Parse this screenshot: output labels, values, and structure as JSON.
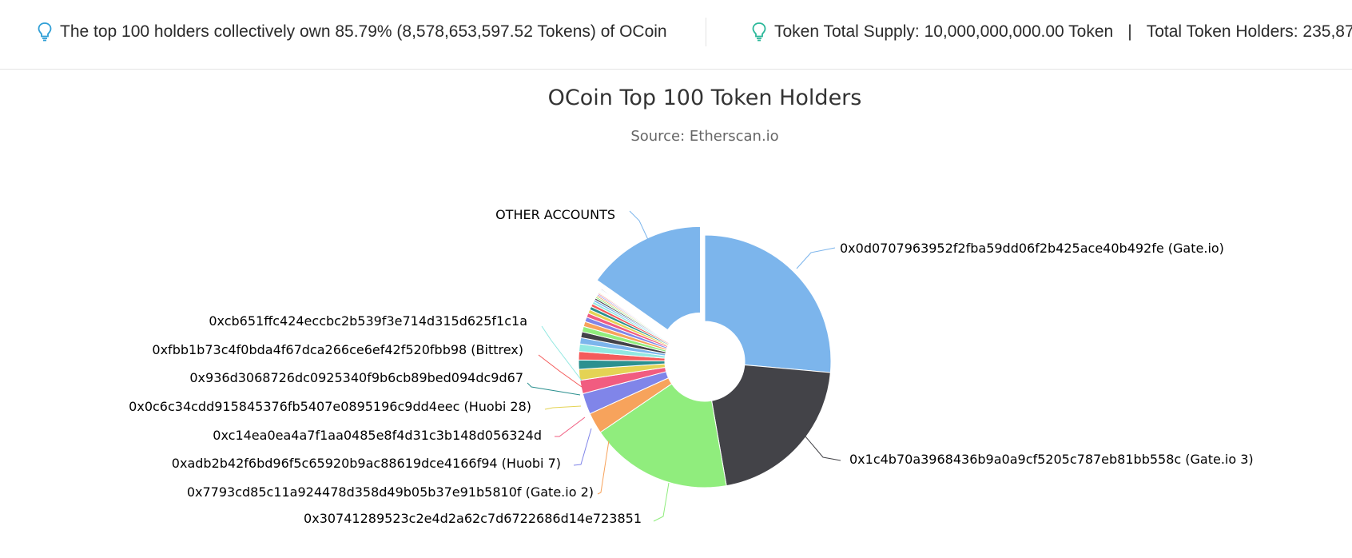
{
  "infobar": {
    "top_holders_text": "The top 100 holders collectively own 85.79% (8,578,653,597.52 Tokens) of OCoin",
    "supply_text": "Token Total Supply: 10,000,000,000.00 Token",
    "separator": "|",
    "holders_text": "Total Token Holders: 235,87",
    "icon": "lightbulb-icon",
    "icon_colors": [
      "#2f9fd6",
      "#2bb89a"
    ]
  },
  "chart_data": {
    "type": "pie",
    "title": "OCoin Top 100 Token Holders",
    "subtitle": "Source: Etherscan.io",
    "donut": true,
    "slices": [
      {
        "label": "0x0d0707963952f2fba59dd06f2b425ace40b492fe (Gate.io)",
        "value": 24.6,
        "color": "#7cb5ec"
      },
      {
        "label": "0x1c4b70a3968436b9a0a9cf5205c787eb81bb558c (Gate.io 3)",
        "value": 19.4,
        "color": "#434348"
      },
      {
        "label": "0x30741289523c2e4d2a62c7d6722686d14e723851",
        "value": 17.0,
        "color": "#90ed7d"
      },
      {
        "label": "0x7793cd85c11a924478d358d49b05b37e91b5810f (Gate.io 2)",
        "value": 2.5,
        "color": "#f7a35c"
      },
      {
        "label": "0xadb2b42f6bd96f5c65920b9ac88619dce4166f94 (Huobi 7)",
        "value": 2.5,
        "color": "#8085e9"
      },
      {
        "label": "0xc14ea0ea4a7f1aa0485e8f4d31c3b148d056324d",
        "value": 1.6,
        "color": "#f15c80"
      },
      {
        "label": "0x0c6c34cdd915845376fb5407e0895196c9dd4eec (Huobi 28)",
        "value": 1.3,
        "color": "#e4d354"
      },
      {
        "label": "0x936d3068726dc0925340f9b6cb89bed094dc9d67",
        "value": 1.1,
        "color": "#2b908f"
      },
      {
        "label": "0xfbb1b73c4f0bda4f67dca266ce6ef42f520fbb98 (Bittrex)",
        "value": 1.0,
        "color": "#f45b5b"
      },
      {
        "label": "0xcb651ffc424eccbc2b539f3e714d315d625f1c1a",
        "value": 0.9,
        "color": "#91e8e1"
      },
      {
        "label": "",
        "value": 0.75,
        "color": "#7cb5ec"
      },
      {
        "label": "",
        "value": 0.7,
        "color": "#434348"
      },
      {
        "label": "",
        "value": 0.65,
        "color": "#90ed7d"
      },
      {
        "label": "",
        "value": 0.6,
        "color": "#f7a35c"
      },
      {
        "label": "",
        "value": 0.55,
        "color": "#8085e9"
      },
      {
        "label": "",
        "value": 0.5,
        "color": "#f15c80"
      },
      {
        "label": "",
        "value": 0.45,
        "color": "#e4d354"
      },
      {
        "label": "",
        "value": 0.4,
        "color": "#2b908f"
      },
      {
        "label": "",
        "value": 0.35,
        "color": "#f45b5b"
      },
      {
        "label": "",
        "value": 0.3,
        "color": "#91e8e1"
      },
      {
        "label": "",
        "value": 0.25,
        "color": "#7cb5ec"
      },
      {
        "label": "",
        "value": 0.22,
        "color": "#434348"
      },
      {
        "label": "",
        "value": 0.2,
        "color": "#90ed7d"
      },
      {
        "label": "",
        "value": 0.18,
        "color": "#f7a35c"
      },
      {
        "label": "",
        "value": 0.16,
        "color": "#8085e9"
      },
      {
        "label": "",
        "value": 0.14,
        "color": "#f15c80"
      },
      {
        "label": "",
        "value": 0.12,
        "color": "#e4d354"
      },
      {
        "label": "",
        "value": 0.1,
        "color": "#2b908f"
      },
      {
        "label": "",
        "value": 0.1,
        "color": "#f45b5b"
      },
      {
        "label": "",
        "value": 0.1,
        "color": "#91e8e1"
      },
      {
        "label": "",
        "value": 0.1,
        "color": "#7cb5ec"
      },
      {
        "label": "",
        "value": 0.1,
        "color": "#434348"
      },
      {
        "label": "OTHER ACCOUNTS",
        "value": 14.2,
        "color": "#7cb5ec",
        "sliced": true
      }
    ]
  }
}
